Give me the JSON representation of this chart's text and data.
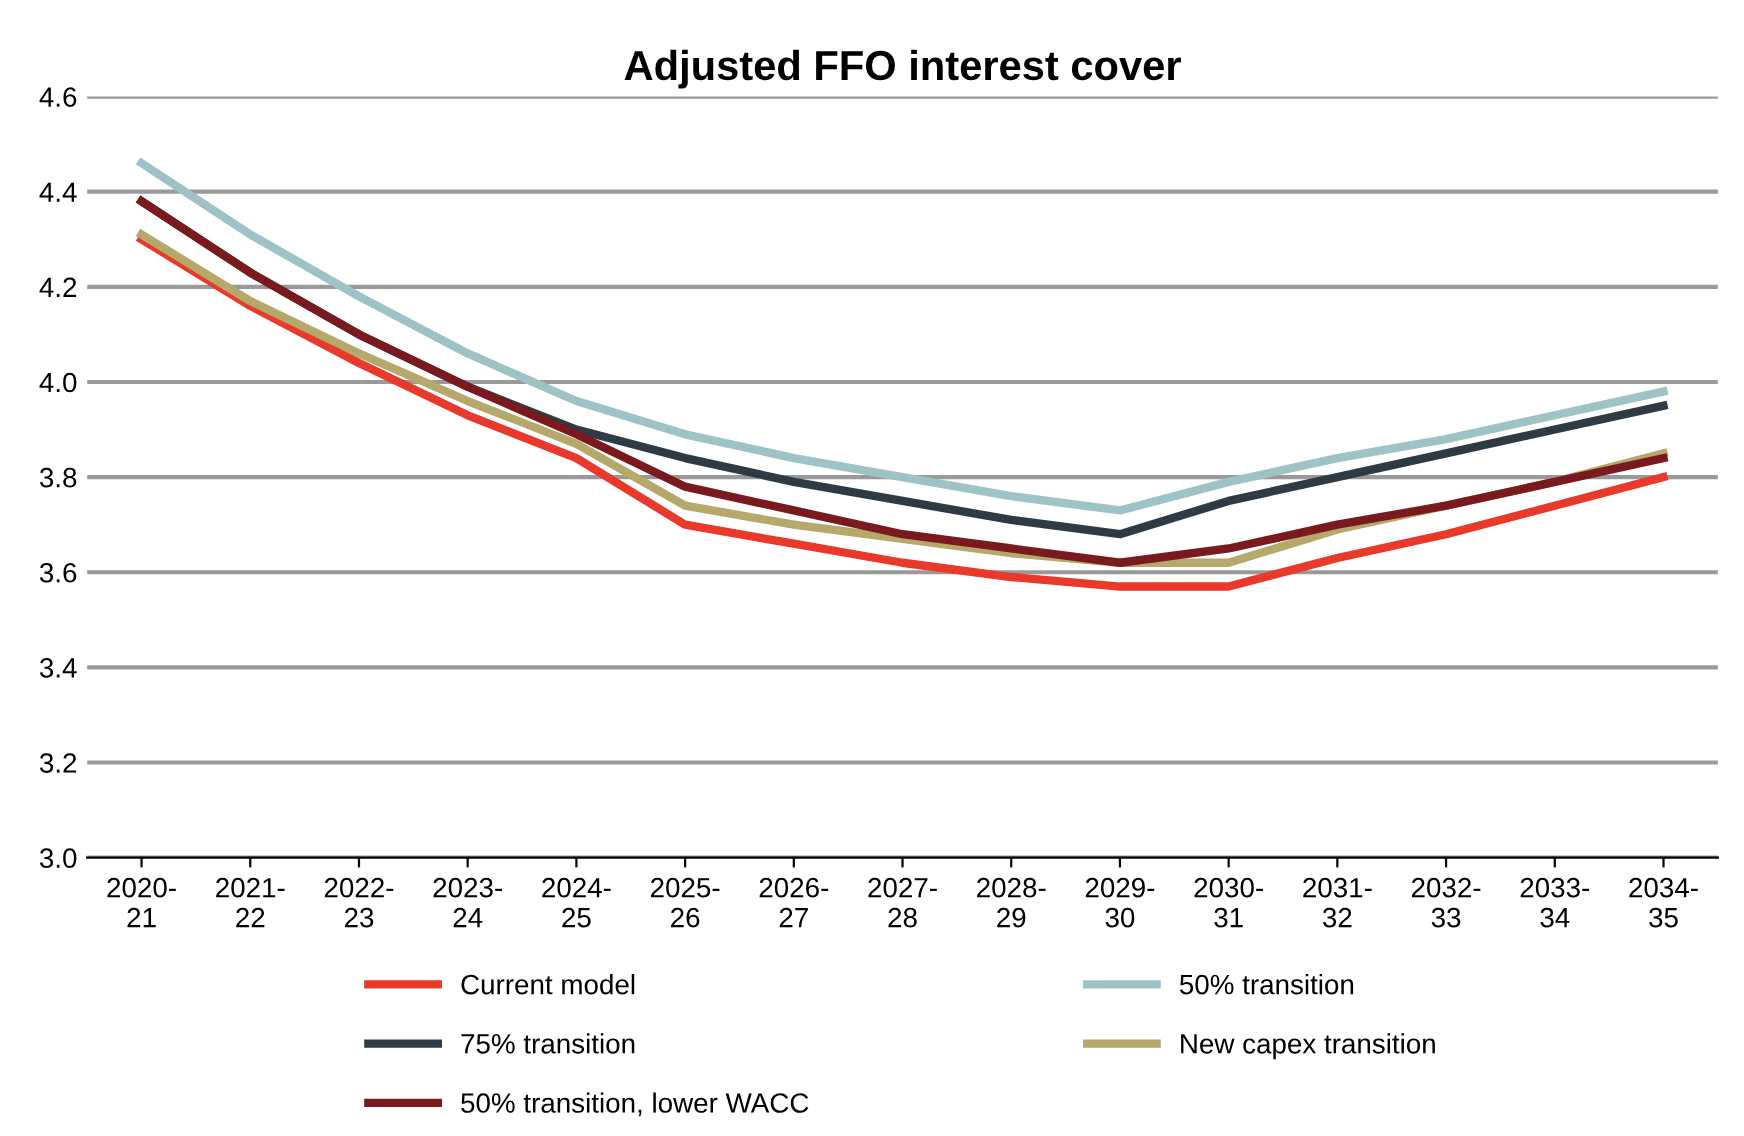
{
  "chart_data": {
    "type": "line",
    "title": "Adjusted FFO interest cover",
    "categories": [
      "2020-\n21",
      "2021-\n22",
      "2022-\n23",
      "2023-\n24",
      "2024-\n25",
      "2025-\n26",
      "2026-\n27",
      "2027-\n28",
      "2028-\n29",
      "2029-\n30",
      "2030-\n31",
      "2031-\n32",
      "2032-\n33",
      "2033-\n34",
      "2034-\n35"
    ],
    "series": [
      {
        "name": "Current model",
        "color": "#e8392a",
        "values": [
          4.3,
          4.16,
          4.04,
          3.93,
          3.84,
          3.7,
          3.66,
          3.62,
          3.59,
          3.57,
          3.57,
          3.63,
          3.68,
          3.74,
          3.8
        ]
      },
      {
        "name": "50% transition",
        "color": "#9dc3c6",
        "values": [
          4.46,
          4.31,
          4.18,
          4.06,
          3.96,
          3.89,
          3.84,
          3.8,
          3.76,
          3.73,
          3.79,
          3.84,
          3.88,
          3.93,
          3.98
        ]
      },
      {
        "name": "75% transition",
        "color": "#2e3a44",
        "values": [
          4.38,
          4.23,
          4.1,
          3.99,
          3.9,
          3.84,
          3.79,
          3.75,
          3.71,
          3.68,
          3.75,
          3.8,
          3.85,
          3.9,
          3.95
        ]
      },
      {
        "name": "New capex transition",
        "color": "#b5a86a",
        "values": [
          4.31,
          4.17,
          4.06,
          3.96,
          3.87,
          3.74,
          3.7,
          3.67,
          3.64,
          3.62,
          3.62,
          3.69,
          3.74,
          3.79,
          3.85
        ]
      },
      {
        "name": "50% transition, lower WACC",
        "color": "#7a1a1e",
        "values": [
          4.38,
          4.23,
          4.1,
          3.99,
          3.89,
          3.78,
          3.73,
          3.68,
          3.65,
          3.62,
          3.65,
          3.7,
          3.74,
          3.79,
          3.84
        ]
      }
    ],
    "ylim": [
      3.0,
      4.6
    ],
    "yticks": [
      {
        "value": 3,
        "label": "3.0"
      },
      3.2,
      3.4,
      3.6,
      3.8,
      {
        "value": 4,
        "label": "4.0"
      },
      4.2,
      4.4,
      4.6
    ],
    "grid": "y",
    "legend": "bottom",
    "marker": "none",
    "line_style": "solid"
  }
}
